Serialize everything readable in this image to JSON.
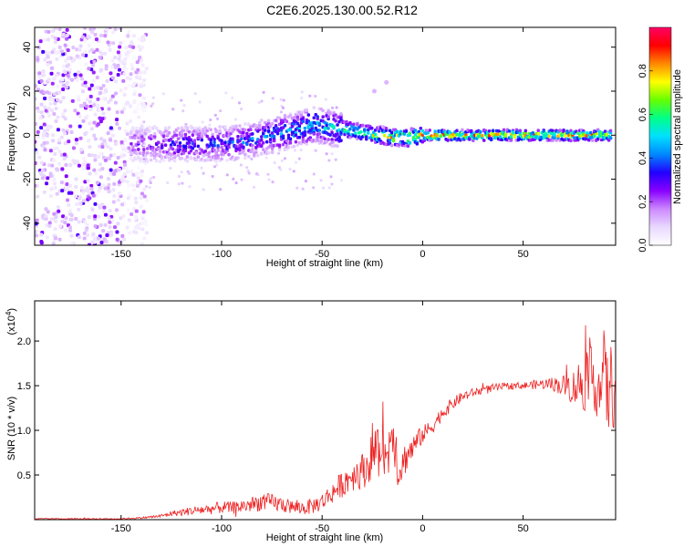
{
  "title": "C2E6.2025.130.00.52.R12",
  "chart_data": [
    {
      "type": "heatmap",
      "xlabel": "Height of straight line (km)",
      "ylabel": "Frequency (Hz)",
      "xlim": [
        -193,
        96
      ],
      "ylim": [
        -50,
        49
      ],
      "xticks": [
        -150,
        -100,
        -50,
        0,
        50
      ],
      "yticks": [
        -40,
        -20,
        0,
        20,
        40
      ],
      "colorbar": {
        "label": "Normalized spectral amplitude",
        "range": [
          0,
          1
        ],
        "ticks": [
          0.0,
          0.2,
          0.4,
          0.6,
          0.8
        ],
        "colormap": [
          "#ffffff",
          "#e8d8ff",
          "#cc88ff",
          "#8800ff",
          "#2200ff",
          "#0088ff",
          "#00e0ff",
          "#00ff88",
          "#66ff00",
          "#ffff00",
          "#ff8800",
          "#ff0000",
          "#ff0066"
        ]
      },
      "ridge": {
        "x": [
          -145,
          -130,
          -120,
          -110,
          -100,
          -90,
          -80,
          -70,
          -60,
          -55,
          -50,
          -45,
          -40,
          -35,
          -30,
          -25,
          -20,
          -15,
          -10,
          -5,
          0,
          10,
          20,
          50,
          94
        ],
        "frequency": [
          -4,
          -4,
          -4,
          -4,
          -4,
          -3,
          -1,
          1,
          3,
          5,
          4,
          3,
          3,
          2,
          1,
          0,
          0,
          -1,
          -1,
          -1,
          0,
          0,
          0,
          0,
          0
        ],
        "peak_amplitude": [
          0.3,
          0.35,
          0.4,
          0.4,
          0.4,
          0.45,
          0.45,
          0.5,
          0.55,
          0.6,
          0.55,
          0.6,
          0.65,
          0.7,
          0.75,
          0.8,
          0.85,
          0.9,
          0.9,
          0.95,
          0.95,
          0.95,
          0.95,
          0.95,
          0.95
        ]
      },
      "noise_region_x": [
        -193,
        -137
      ],
      "isolated_points": [
        {
          "x": -18,
          "frequency": 24
        },
        {
          "x": -24,
          "frequency": 20
        }
      ]
    },
    {
      "type": "line",
      "xlabel": "Height of straight line (km)",
      "ylabel": "SNR (10 * v/v)",
      "y_multiplier": "(x10",
      "y_multiplier_exp": "4",
      "y_multiplier_close": ")",
      "xlim": [
        -193,
        96
      ],
      "ylim": [
        0,
        2.45
      ],
      "xticks": [
        -150,
        -100,
        -50,
        0,
        50
      ],
      "yticks": [
        0.5,
        1.0,
        1.5,
        2.0
      ],
      "ytick_labels": [
        "0.5",
        "1.0",
        "1.5",
        "2.0"
      ],
      "series": [
        {
          "color": "#ee2222",
          "x": [
            -193,
            -180,
            -170,
            -160,
            -150,
            -140,
            -130,
            -125,
            -120,
            -115,
            -110,
            -105,
            -100,
            -95,
            -90,
            -85,
            -80,
            -75,
            -70,
            -65,
            -60,
            -55,
            -50,
            -45,
            -40,
            -35,
            -30,
            -27,
            -25,
            -22,
            -20,
            -18,
            -15,
            -13,
            -12,
            -10,
            -8,
            -5,
            -2,
            0,
            5,
            10,
            15,
            20,
            25,
            30,
            35,
            40,
            45,
            50,
            55,
            60,
            65,
            70,
            75,
            80,
            85,
            88,
            90,
            92,
            94
          ],
          "y": [
            0.01,
            0.01,
            0.01,
            0.01,
            0.01,
            0.02,
            0.04,
            0.07,
            0.08,
            0.1,
            0.11,
            0.12,
            0.14,
            0.13,
            0.15,
            0.17,
            0.2,
            0.19,
            0.17,
            0.14,
            0.13,
            0.15,
            0.2,
            0.3,
            0.4,
            0.5,
            0.55,
            0.6,
            0.8,
            0.7,
            1.05,
            0.6,
            1.1,
            0.75,
            0.55,
            0.62,
            0.72,
            0.8,
            0.9,
            0.95,
            1.05,
            1.2,
            1.3,
            1.38,
            1.42,
            1.45,
            1.47,
            1.49,
            1.5,
            1.5,
            1.51,
            1.52,
            1.52,
            1.5,
            1.48,
            1.55,
            1.6,
            1.45,
            1.7,
            1.4,
            1.5
          ],
          "noise_amplitude": [
            0.005,
            0.005,
            0.005,
            0.005,
            0.006,
            0.01,
            0.02,
            0.03,
            0.04,
            0.05,
            0.06,
            0.06,
            0.07,
            0.07,
            0.08,
            0.09,
            0.1,
            0.1,
            0.09,
            0.08,
            0.08,
            0.09,
            0.1,
            0.12,
            0.15,
            0.18,
            0.2,
            0.22,
            0.3,
            0.3,
            0.35,
            0.3,
            0.35,
            0.3,
            0.25,
            0.2,
            0.18,
            0.15,
            0.12,
            0.1,
            0.09,
            0.08,
            0.07,
            0.06,
            0.05,
            0.05,
            0.05,
            0.04,
            0.04,
            0.04,
            0.05,
            0.06,
            0.08,
            0.12,
            0.2,
            0.35,
            0.35,
            0.4,
            0.45,
            0.5,
            0.5
          ]
        }
      ]
    }
  ]
}
